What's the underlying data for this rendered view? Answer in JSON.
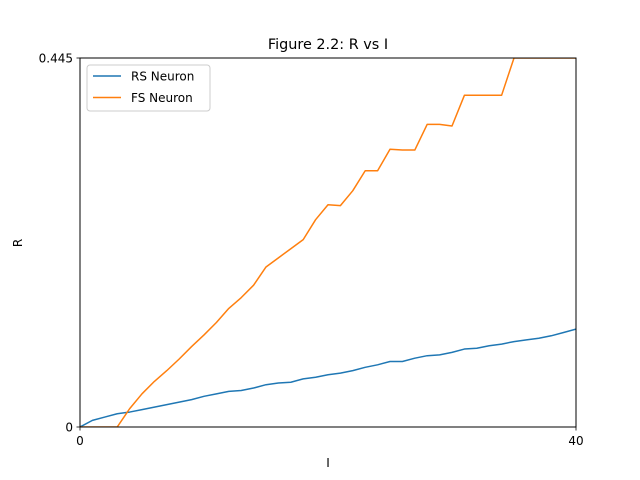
{
  "chart_data": {
    "type": "line",
    "title": "Figure 2.2: R vs I",
    "xlabel": "I",
    "ylabel": "R",
    "xlim": [
      0,
      40
    ],
    "ylim": [
      0,
      0.445
    ],
    "xticks": [
      "0",
      "40"
    ],
    "yticks": [
      "0",
      "0.445"
    ],
    "grid": false,
    "legend_position": "upper-left",
    "series": [
      {
        "name": "RS Neuron",
        "color": "#1f77b4",
        "x": [
          0,
          1,
          2,
          3,
          4,
          5,
          6,
          7,
          8,
          9,
          10,
          11,
          12,
          13,
          14,
          15,
          16,
          17,
          18,
          19,
          20,
          21,
          22,
          23,
          24,
          25,
          26,
          27,
          28,
          29,
          30,
          31,
          32,
          33,
          34,
          35,
          36,
          37,
          38,
          39,
          40
        ],
        "values": [
          0,
          0.008,
          0.012,
          0.016,
          0.018,
          0.021,
          0.024,
          0.027,
          0.03,
          0.033,
          0.037,
          0.04,
          0.043,
          0.044,
          0.047,
          0.051,
          0.053,
          0.054,
          0.058,
          0.06,
          0.063,
          0.065,
          0.068,
          0.072,
          0.075,
          0.079,
          0.079,
          0.083,
          0.086,
          0.087,
          0.09,
          0.094,
          0.095,
          0.098,
          0.1,
          0.103,
          0.105,
          0.107,
          0.11,
          0.114,
          0.118
        ]
      },
      {
        "name": "FS Neuron",
        "color": "#ff7f0e",
        "x": [
          0,
          1,
          2,
          3,
          4,
          5,
          6,
          7,
          8,
          9,
          10,
          11,
          12,
          13,
          14,
          15,
          16,
          17,
          18,
          19,
          20,
          21,
          22,
          23,
          24,
          25,
          26,
          27,
          28,
          29,
          30,
          31,
          32,
          33,
          34,
          35,
          36,
          37,
          38,
          39,
          40
        ],
        "values": [
          0,
          0,
          0,
          0,
          0.022,
          0.04,
          0.055,
          0.068,
          0.082,
          0.097,
          0.111,
          0.126,
          0.143,
          0.156,
          0.171,
          0.193,
          0.204,
          0.215,
          0.226,
          0.25,
          0.268,
          0.267,
          0.285,
          0.309,
          0.309,
          0.335,
          0.334,
          0.334,
          0.365,
          0.365,
          0.363,
          0.4,
          0.4,
          0.4,
          0.4,
          0.445,
          0.445,
          0.445,
          0.445,
          0.445,
          0.445
        ]
      }
    ]
  }
}
